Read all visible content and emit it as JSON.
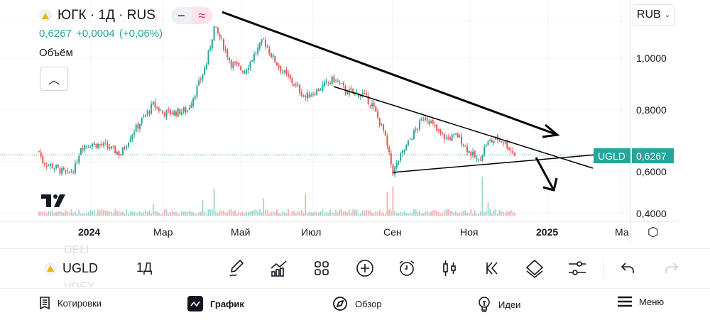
{
  "header": {
    "title": "ЮГК · 1Д · RUS",
    "price": "0,6267",
    "change": "+0,0004",
    "change_pct": "(+0,06%)",
    "volume_label": "Объём",
    "mode_line": "−",
    "mode_wave": "≈"
  },
  "currency": "RUB",
  "price_axis": [
    "1,0000",
    "0,8000",
    "0,6000",
    "0,4000"
  ],
  "last_price_tag": {
    "symbol": "UGLD",
    "value": "0,6267"
  },
  "time_axis": [
    "2024",
    "Мар",
    "Май",
    "Июл",
    "Сен",
    "Ноя",
    "2025",
    "Ма"
  ],
  "toolbar": {
    "symbol": "UGLD",
    "symbol_prev": "DELI",
    "symbol_next": "VDEX",
    "interval": "1Д"
  },
  "nav": [
    {
      "label": "Котировки"
    },
    {
      "label": "График"
    },
    {
      "label": "Обзор"
    },
    {
      "label": "Идеи"
    },
    {
      "label": "Меню"
    }
  ],
  "colors": {
    "up": "#26a69a",
    "down": "#ef5350",
    "accent": "#26a69a"
  },
  "chart_data": {
    "type": "candlestick",
    "ylim": [
      0.4,
      1.15
    ],
    "last": 0.6267,
    "price_path": [
      [
        0,
        0.64
      ],
      [
        2,
        0.6
      ],
      [
        8,
        0.58
      ],
      [
        15,
        0.55
      ],
      [
        19,
        0.58
      ],
      [
        22,
        0.66
      ],
      [
        28,
        0.67
      ],
      [
        35,
        0.66
      ],
      [
        43,
        0.63
      ],
      [
        48,
        0.7
      ],
      [
        54,
        0.76
      ],
      [
        60,
        0.82
      ],
      [
        65,
        0.79
      ],
      [
        71,
        0.79
      ],
      [
        78,
        0.8
      ],
      [
        84,
        0.9
      ],
      [
        88,
        0.98
      ],
      [
        92,
        1.12
      ],
      [
        95,
        1.08
      ],
      [
        101,
        0.98
      ],
      [
        108,
        0.95
      ],
      [
        112,
        1.0
      ],
      [
        118,
        1.07
      ],
      [
        123,
        1.0
      ],
      [
        129,
        0.94
      ],
      [
        134,
        0.9
      ],
      [
        140,
        0.85
      ],
      [
        147,
        0.88
      ],
      [
        155,
        0.92
      ],
      [
        162,
        0.87
      ],
      [
        170,
        0.86
      ],
      [
        175,
        0.82
      ],
      [
        181,
        0.72
      ],
      [
        186,
        0.56
      ],
      [
        190,
        0.62
      ],
      [
        196,
        0.7
      ],
      [
        203,
        0.78
      ],
      [
        209,
        0.72
      ],
      [
        214,
        0.69
      ],
      [
        220,
        0.7
      ],
      [
        226,
        0.64
      ],
      [
        231,
        0.6
      ],
      [
        235,
        0.67
      ],
      [
        241,
        0.69
      ],
      [
        244,
        0.68
      ],
      [
        250,
        0.63
      ]
    ],
    "volume_spikes": [
      [
        92,
        0.7
      ],
      [
        86,
        0.4
      ],
      [
        140,
        0.55
      ],
      [
        183,
        0.6
      ],
      [
        186,
        0.75
      ],
      [
        233,
        1.0
      ],
      [
        236,
        0.35
      ],
      [
        118,
        0.45
      ],
      [
        60,
        0.3
      ]
    ]
  }
}
